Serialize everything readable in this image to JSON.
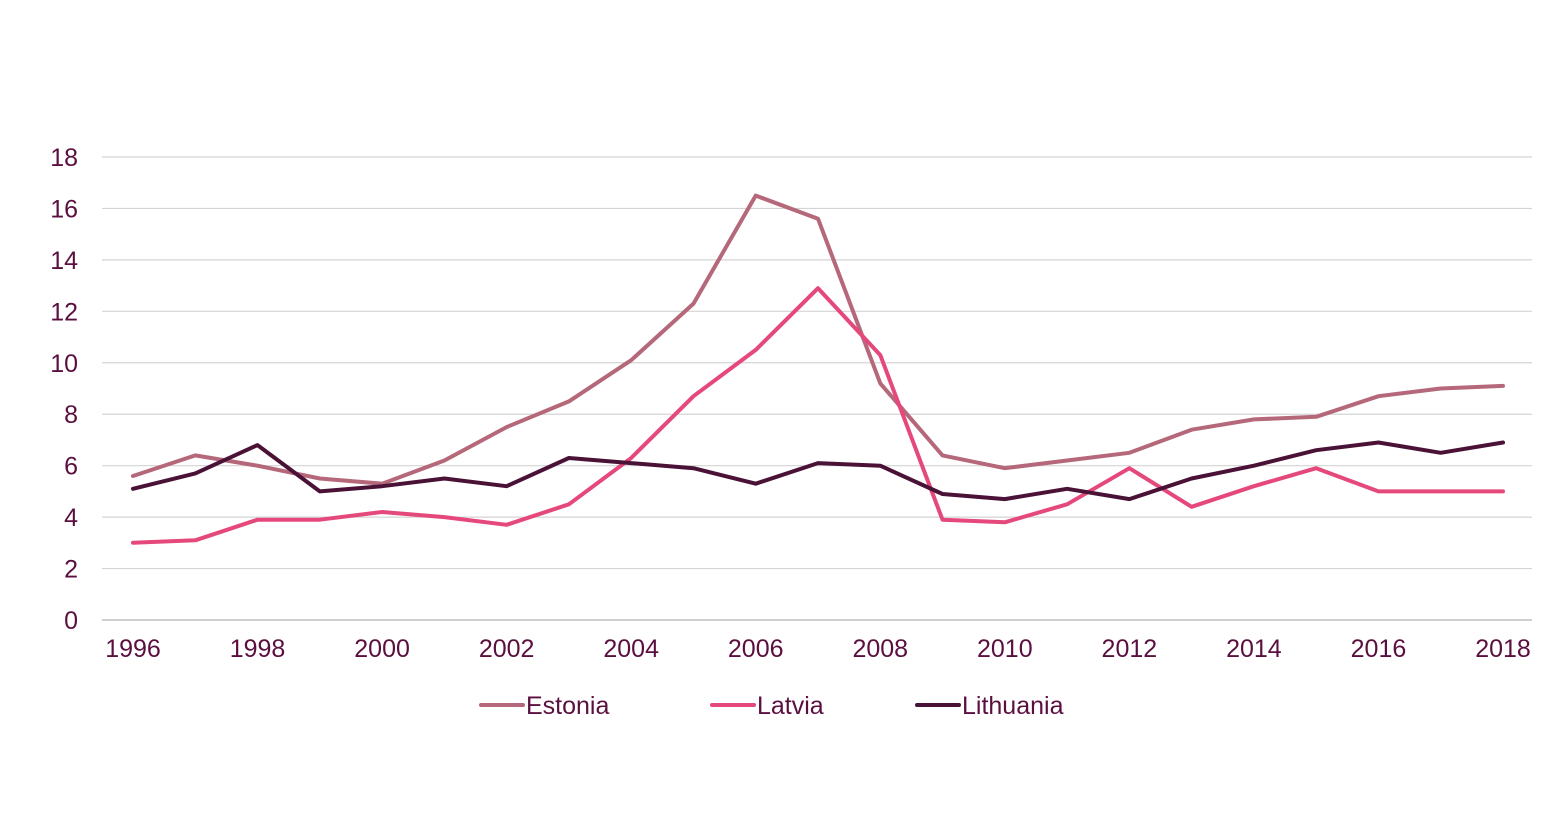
{
  "chart_data": {
    "type": "line",
    "x": [
      "1996",
      "1997",
      "1998",
      "1999",
      "2000",
      "2001",
      "2002",
      "2003",
      "2004",
      "2005",
      "2006",
      "2007",
      "2008",
      "2009",
      "2010",
      "2011",
      "2012",
      "2013",
      "2014",
      "2015",
      "2016",
      "2017",
      "2018"
    ],
    "x_tick_labels": [
      "1996",
      "1998",
      "2000",
      "2002",
      "2004",
      "2006",
      "2008",
      "2010",
      "2012",
      "2014",
      "2016",
      "2018"
    ],
    "y_tick_labels": [
      "0",
      "2",
      "4",
      "6",
      "8",
      "10",
      "12",
      "14",
      "16",
      "18"
    ],
    "ylim": [
      0,
      18
    ],
    "grid": "horizontal",
    "legend_position": "bottom",
    "series": [
      {
        "name": "Estonia",
        "color": "#b5687a",
        "values": [
          5.6,
          6.4,
          6.0,
          5.5,
          5.3,
          6.2,
          7.5,
          8.5,
          10.1,
          12.3,
          16.5,
          15.6,
          9.2,
          6.4,
          5.9,
          6.2,
          6.5,
          7.4,
          7.8,
          7.9,
          8.7,
          9.0,
          9.1
        ]
      },
      {
        "name": "Latvia",
        "color": "#e5487a",
        "values": [
          3.0,
          3.1,
          3.9,
          3.9,
          4.2,
          4.0,
          3.7,
          4.5,
          6.3,
          8.7,
          10.5,
          12.9,
          10.3,
          3.9,
          3.8,
          4.5,
          5.9,
          4.4,
          5.2,
          5.9,
          5.0,
          5.0,
          5.0
        ]
      },
      {
        "name": "Lithuania",
        "color": "#4a1236",
        "values": [
          5.1,
          5.7,
          6.8,
          5.0,
          5.2,
          5.5,
          5.2,
          6.3,
          6.1,
          5.9,
          5.3,
          6.1,
          6.0,
          4.9,
          4.7,
          5.1,
          4.7,
          5.5,
          6.0,
          6.6,
          6.9,
          6.5,
          6.9
        ]
      }
    ]
  }
}
